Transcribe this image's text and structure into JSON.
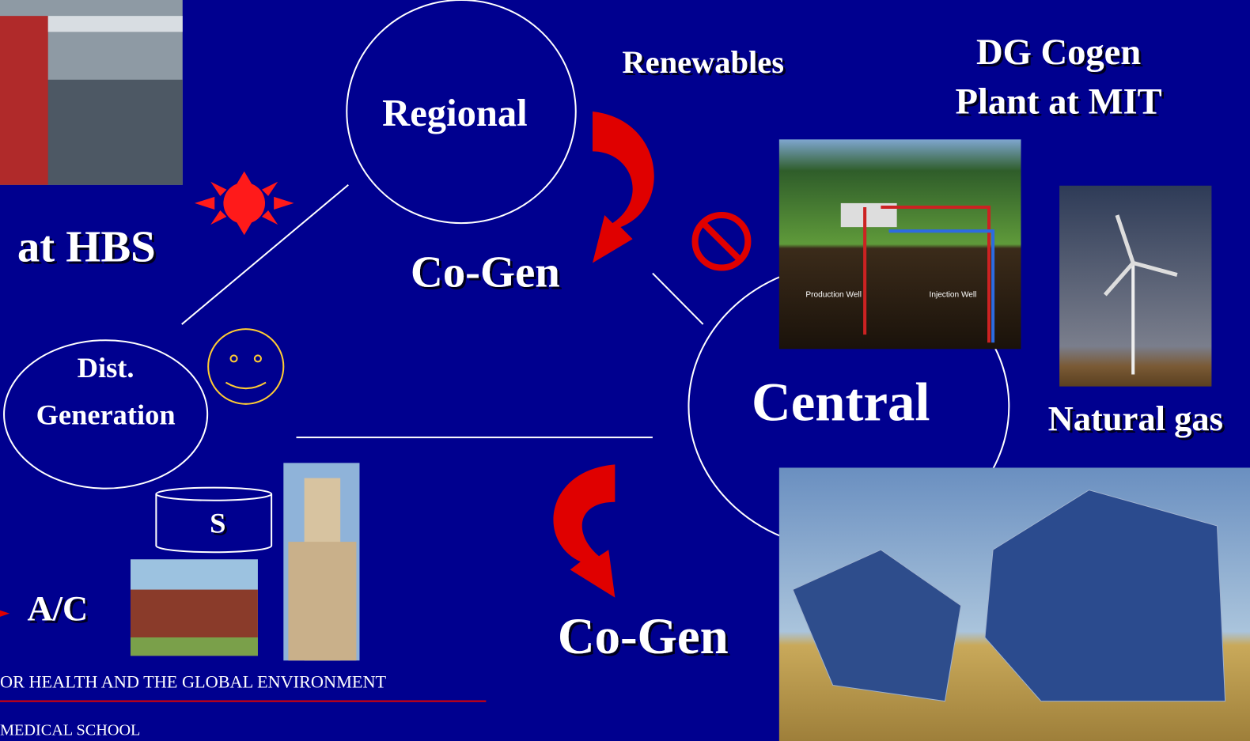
{
  "labels": {
    "hbs": "at HBS",
    "regional": "Regional",
    "renewables": "Renewables",
    "cogen_top": "Co-Gen",
    "dg_cogen_1": "DG Cogen",
    "dg_cogen_2": "Plant at MIT",
    "production_well": "Production Well",
    "injection_well": "Injection Well",
    "dist": "Dist.",
    "generation": "Generation",
    "central": "Central",
    "natural_gas": "Natural gas",
    "storage": "S",
    "ac": "A/C",
    "cogen_bottom": "Co-Gen",
    "footer_1": "OR HEALTH AND THE GLOBAL ENVIRONMENT",
    "footer_2": "MEDICAL SCHOOL"
  }
}
